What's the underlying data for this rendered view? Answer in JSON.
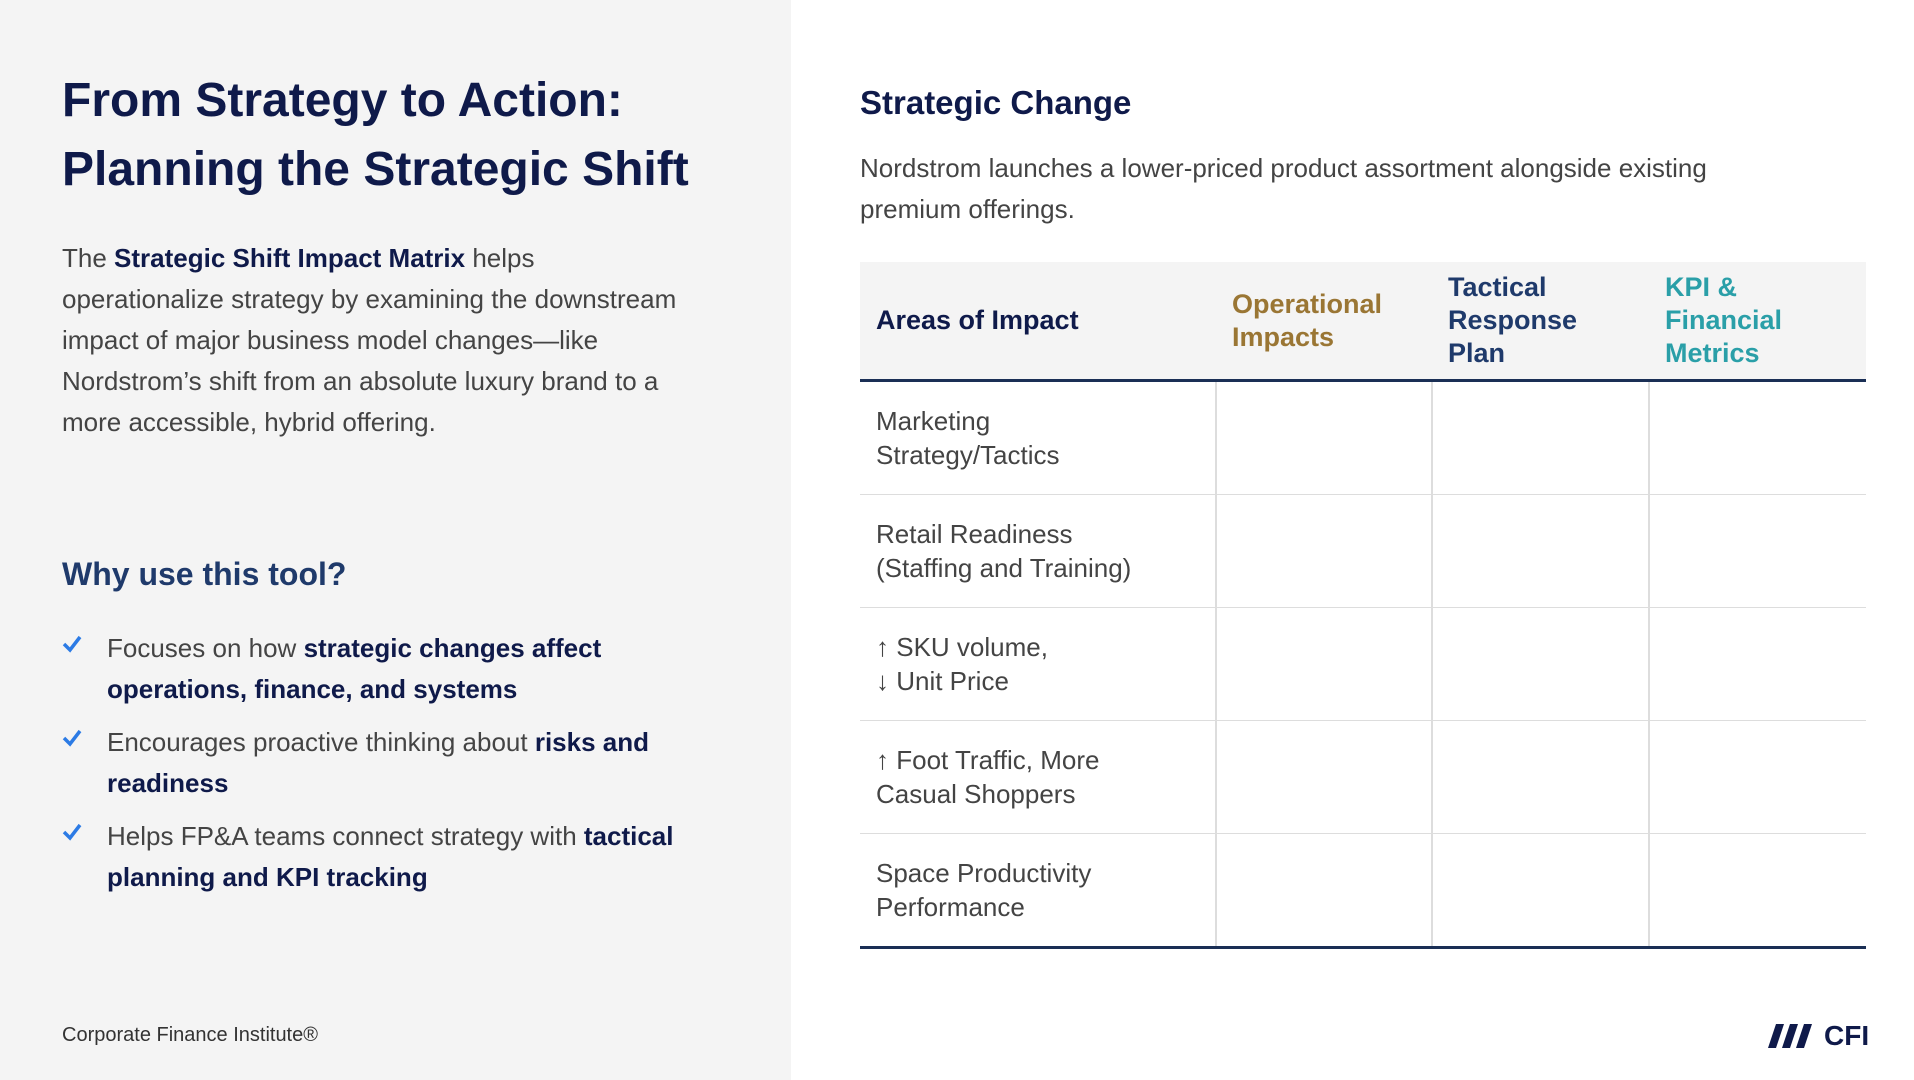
{
  "left": {
    "title_lines": [
      "From Strategy to Action:",
      "Planning the Strategic Shift"
    ],
    "intro": {
      "before": "The ",
      "bold": "Strategic Shift Impact Matrix",
      "after": " helps operationalize strategy by examining the downstream impact of major business model changes—like Nordstrom’s shift from an absolute luxury brand to a more accessible, hybrid offering."
    },
    "why_heading": "Why use this tool?",
    "bullets": [
      {
        "text": "Focuses on how ",
        "bold": "strategic changes affect operations, finance, and systems"
      },
      {
        "text": "Encourages proactive thinking about ",
        "bold": "risks and readiness"
      },
      {
        "text": "Helps FP&A teams connect strategy with ",
        "bold": "tactical planning and KPI tracking"
      }
    ],
    "footer": "Corporate Finance Institute®"
  },
  "right": {
    "heading": "Strategic Change",
    "description": "Nordstrom launches a lower-priced product assortment alongside existing premium offerings.",
    "table": {
      "headers": [
        "Areas of Impact",
        "Operational Impacts",
        "Tactical Response Plan",
        "KPI & Financial Metrics"
      ],
      "rows": [
        "Marketing\nStrategy/Tactics",
        "Retail Readiness\n(Staffing and Training)",
        "↑ SKU volume,\n↓ Unit Price",
        "↑ Foot Traffic, More\nCasual Shoppers",
        "Space Productivity\nPerformance"
      ]
    }
  },
  "logo": "CFI"
}
